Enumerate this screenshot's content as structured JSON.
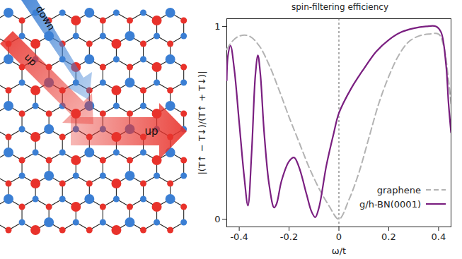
{
  "chart_data": {
    "type": "line",
    "title": "spin-filtering efficiency",
    "x_label": "ω/t",
    "y_label": "|(T↑ − T↓)/(T↑ + T↓)|",
    "xlim": [
      -0.45,
      0.45
    ],
    "xticks": [
      -0.4,
      -0.2,
      0,
      0.2,
      0.4
    ],
    "ylim": [
      -0.04,
      1.04
    ],
    "yticks": [
      0,
      1
    ],
    "vline": 0,
    "legend": "bottom-right",
    "series": [
      {
        "name": "graphene",
        "color": "#b3b3b3",
        "line_style": "dashed",
        "x": [
          -0.45,
          -0.43,
          -0.4,
          -0.36,
          -0.32,
          -0.28,
          -0.24,
          -0.2,
          -0.16,
          -0.12,
          -0.08,
          -0.04,
          0,
          0.04,
          0.08,
          0.12,
          0.16,
          0.2,
          0.24,
          0.28,
          0.32,
          0.36,
          0.4,
          0.42,
          0.44,
          0.45
        ],
        "values": [
          0.88,
          0.92,
          0.95,
          0.95,
          0.9,
          0.8,
          0.67,
          0.53,
          0.4,
          0.27,
          0.16,
          0.07,
          0,
          0.1,
          0.24,
          0.42,
          0.6,
          0.74,
          0.85,
          0.92,
          0.95,
          0.96,
          0.96,
          0.9,
          0.72,
          0.6
        ]
      },
      {
        "name": "g/h-BN(0001)",
        "color": "#7a1f80",
        "line_style": "solid",
        "x": [
          -0.45,
          -0.445,
          -0.435,
          -0.42,
          -0.4,
          -0.38,
          -0.365,
          -0.35,
          -0.335,
          -0.325,
          -0.315,
          -0.3,
          -0.28,
          -0.26,
          -0.25,
          -0.23,
          -0.2,
          -0.18,
          -0.16,
          -0.13,
          -0.11,
          -0.095,
          -0.08,
          -0.05,
          -0.02,
          0,
          0.05,
          0.1,
          0.15,
          0.2,
          0.25,
          0.3,
          0.35,
          0.39,
          0.41,
          0.43,
          0.44,
          0.45
        ],
        "values": [
          0.72,
          0.85,
          0.9,
          0.78,
          0.5,
          0.22,
          0.07,
          0.35,
          0.75,
          0.85,
          0.75,
          0.45,
          0.18,
          0.06,
          0.08,
          0.2,
          0.3,
          0.32,
          0.27,
          0.13,
          0.04,
          0.01,
          0.06,
          0.28,
          0.45,
          0.55,
          0.68,
          0.78,
          0.87,
          0.93,
          0.97,
          0.99,
          1.0,
          1.0,
          0.97,
          0.8,
          0.6,
          0.45
        ]
      }
    ]
  },
  "diagram": {
    "incoming_arrows": [
      {
        "label": "up",
        "color": "#e8322b"
      },
      {
        "label": "down",
        "color": "#3b7fd4"
      }
    ],
    "outgoing_arrow": {
      "label": "up",
      "color": "#e8322b"
    }
  }
}
